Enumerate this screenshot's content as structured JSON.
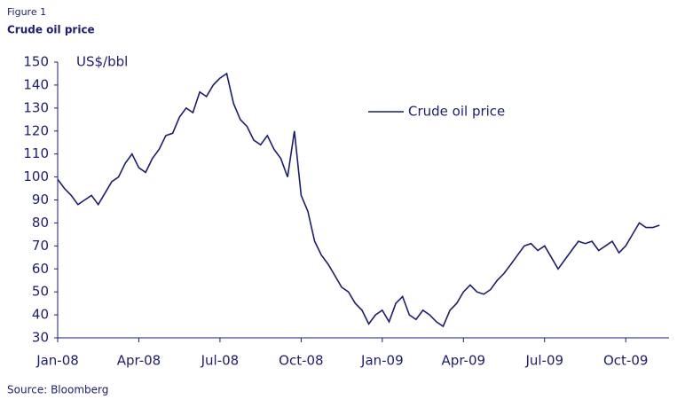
{
  "chart_data": {
    "type": "line",
    "figure_label": "Figure 1",
    "title": "Crude oil price",
    "y_axis_label": "US$/bbl",
    "source": "Source: Bloomberg",
    "legend_position": "upper-right",
    "x": [
      0,
      0.25,
      0.5,
      0.75,
      1,
      1.25,
      1.5,
      1.75,
      2,
      2.25,
      2.5,
      2.75,
      3,
      3.25,
      3.5,
      3.75,
      4,
      4.25,
      4.5,
      4.75,
      5,
      5.25,
      5.5,
      5.75,
      6,
      6.25,
      6.5,
      6.75,
      7,
      7.25,
      7.5,
      7.75,
      8,
      8.25,
      8.5,
      8.75,
      9,
      9.25,
      9.5,
      9.75,
      10,
      10.25,
      10.5,
      10.75,
      11,
      11.25,
      11.5,
      11.75,
      12,
      12.25,
      12.5,
      12.75,
      13,
      13.25,
      13.5,
      13.75,
      14,
      14.25,
      14.5,
      14.75,
      15,
      15.25,
      15.5,
      15.75,
      16,
      16.25,
      16.5,
      16.75,
      17,
      17.25,
      17.5,
      17.75,
      18,
      18.25,
      18.5,
      18.75,
      19,
      19.25,
      19.5,
      19.75,
      20,
      20.25,
      20.5,
      20.75,
      21,
      21.25,
      21.5,
      21.75,
      22,
      22.25
    ],
    "series": [
      {
        "name": "Crude oil price",
        "color": "#1c1c78",
        "values": [
          99,
          95,
          92,
          88,
          90,
          92,
          88,
          93,
          98,
          100,
          106,
          110,
          104,
          102,
          108,
          112,
          118,
          119,
          126,
          130,
          128,
          137,
          135,
          140,
          143,
          145,
          132,
          125,
          122,
          116,
          114,
          118,
          112,
          108,
          100,
          120,
          92,
          85,
          72,
          66,
          62,
          57,
          52,
          50,
          45,
          42,
          36,
          40,
          42,
          37,
          45,
          48,
          40,
          38,
          42,
          40,
          37,
          35,
          42,
          45,
          50,
          53,
          50,
          49,
          51,
          55,
          58,
          62,
          66,
          70,
          71,
          68,
          70,
          65,
          60,
          64,
          68,
          72,
          71,
          72,
          68,
          70,
          72,
          67,
          70,
          75,
          80,
          78,
          78,
          79
        ]
      }
    ],
    "xlim": [
      0,
      22.6
    ],
    "xticks": [
      {
        "value": 0,
        "label": "Jan-08"
      },
      {
        "value": 3,
        "label": "Apr-08"
      },
      {
        "value": 6,
        "label": "Jul-08"
      },
      {
        "value": 9,
        "label": "Oct-08"
      },
      {
        "value": 12,
        "label": "Jan-09"
      },
      {
        "value": 15,
        "label": "Apr-09"
      },
      {
        "value": 18,
        "label": "Jul-09"
      },
      {
        "value": 21,
        "label": "Oct-09"
      }
    ],
    "ylim": [
      30,
      150
    ],
    "yticks": [
      30,
      40,
      50,
      60,
      70,
      80,
      90,
      100,
      110,
      120,
      130,
      140,
      150
    ]
  }
}
